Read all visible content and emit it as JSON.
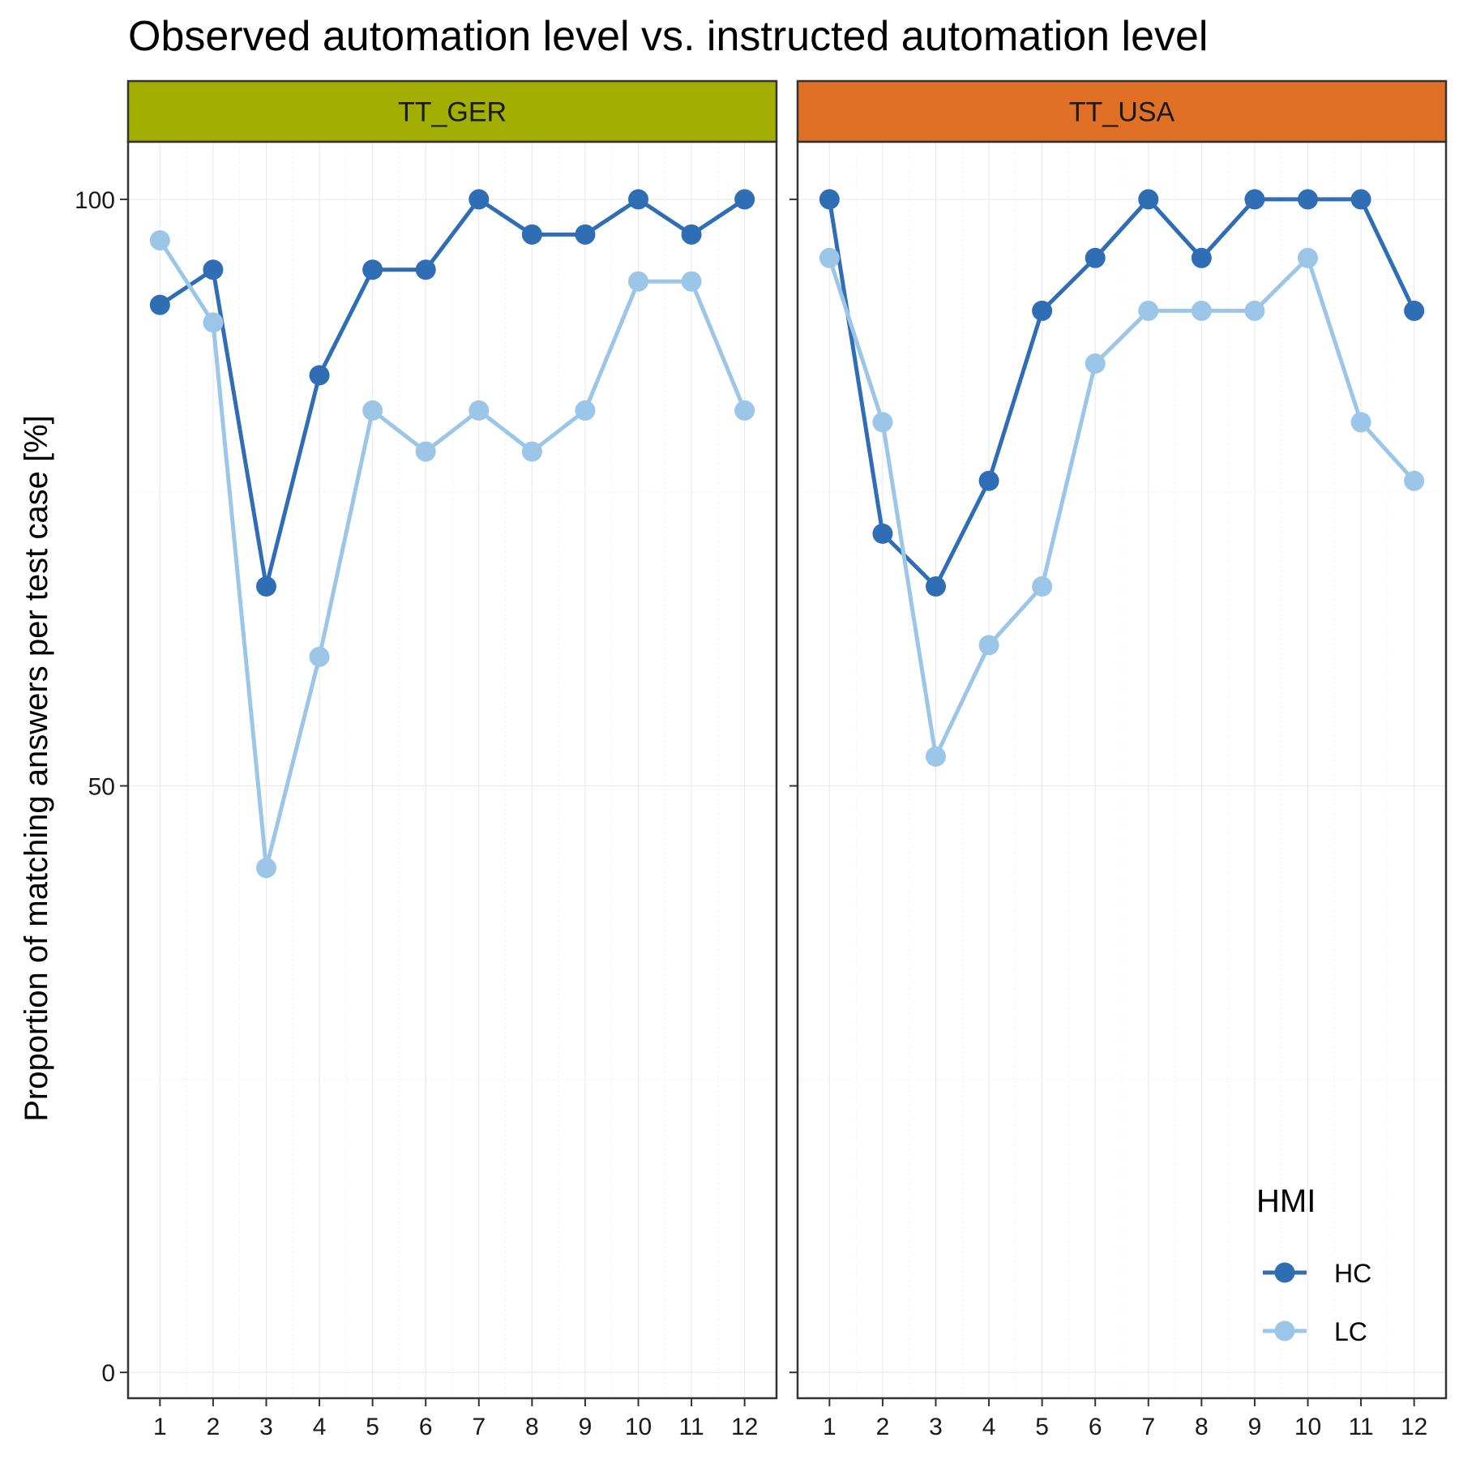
{
  "chart_data": {
    "type": "line",
    "title": "Observed automation level vs. instructed automation level",
    "ylabel": "Proportion of matching answers per test case [%]",
    "xlabel": "",
    "x": [
      1,
      2,
      3,
      4,
      5,
      6,
      7,
      8,
      9,
      10,
      11,
      12
    ],
    "ylim": [
      -2.2,
      104.9
    ],
    "yticks": [
      0,
      50,
      100
    ],
    "legend": {
      "title": "HMI",
      "placement": "bottom-right",
      "entries": [
        {
          "label": "HC",
          "color": "#2f6db5"
        },
        {
          "label": "LC",
          "color": "#9cc6e8"
        }
      ]
    },
    "facets": [
      {
        "label": "TT_GER",
        "strip_color": "#a2ae00",
        "series": [
          {
            "name": "HC",
            "color": "#2f6db5",
            "values": [
              91,
              94,
              67,
              85,
              94,
              94,
              100,
              97,
              97,
              100,
              97,
              100
            ]
          },
          {
            "name": "LC",
            "color": "#9cc6e8",
            "values": [
              96.5,
              89.5,
              43,
              61,
              82,
              78.5,
              82,
              78.5,
              82,
              93,
              93,
              82
            ]
          }
        ]
      },
      {
        "label": "TT_USA",
        "strip_color": "#e07026",
        "series": [
          {
            "name": "HC",
            "color": "#2f6db5",
            "values": [
              100,
              71.5,
              67,
              76,
              90.5,
              95,
              100,
              95,
              100,
              100,
              100,
              90.5
            ]
          },
          {
            "name": "LC",
            "color": "#9cc6e8",
            "values": [
              95,
              81,
              52.5,
              62,
              67,
              86,
              90.5,
              90.5,
              90.5,
              95,
              81,
              76
            ]
          }
        ]
      }
    ]
  }
}
